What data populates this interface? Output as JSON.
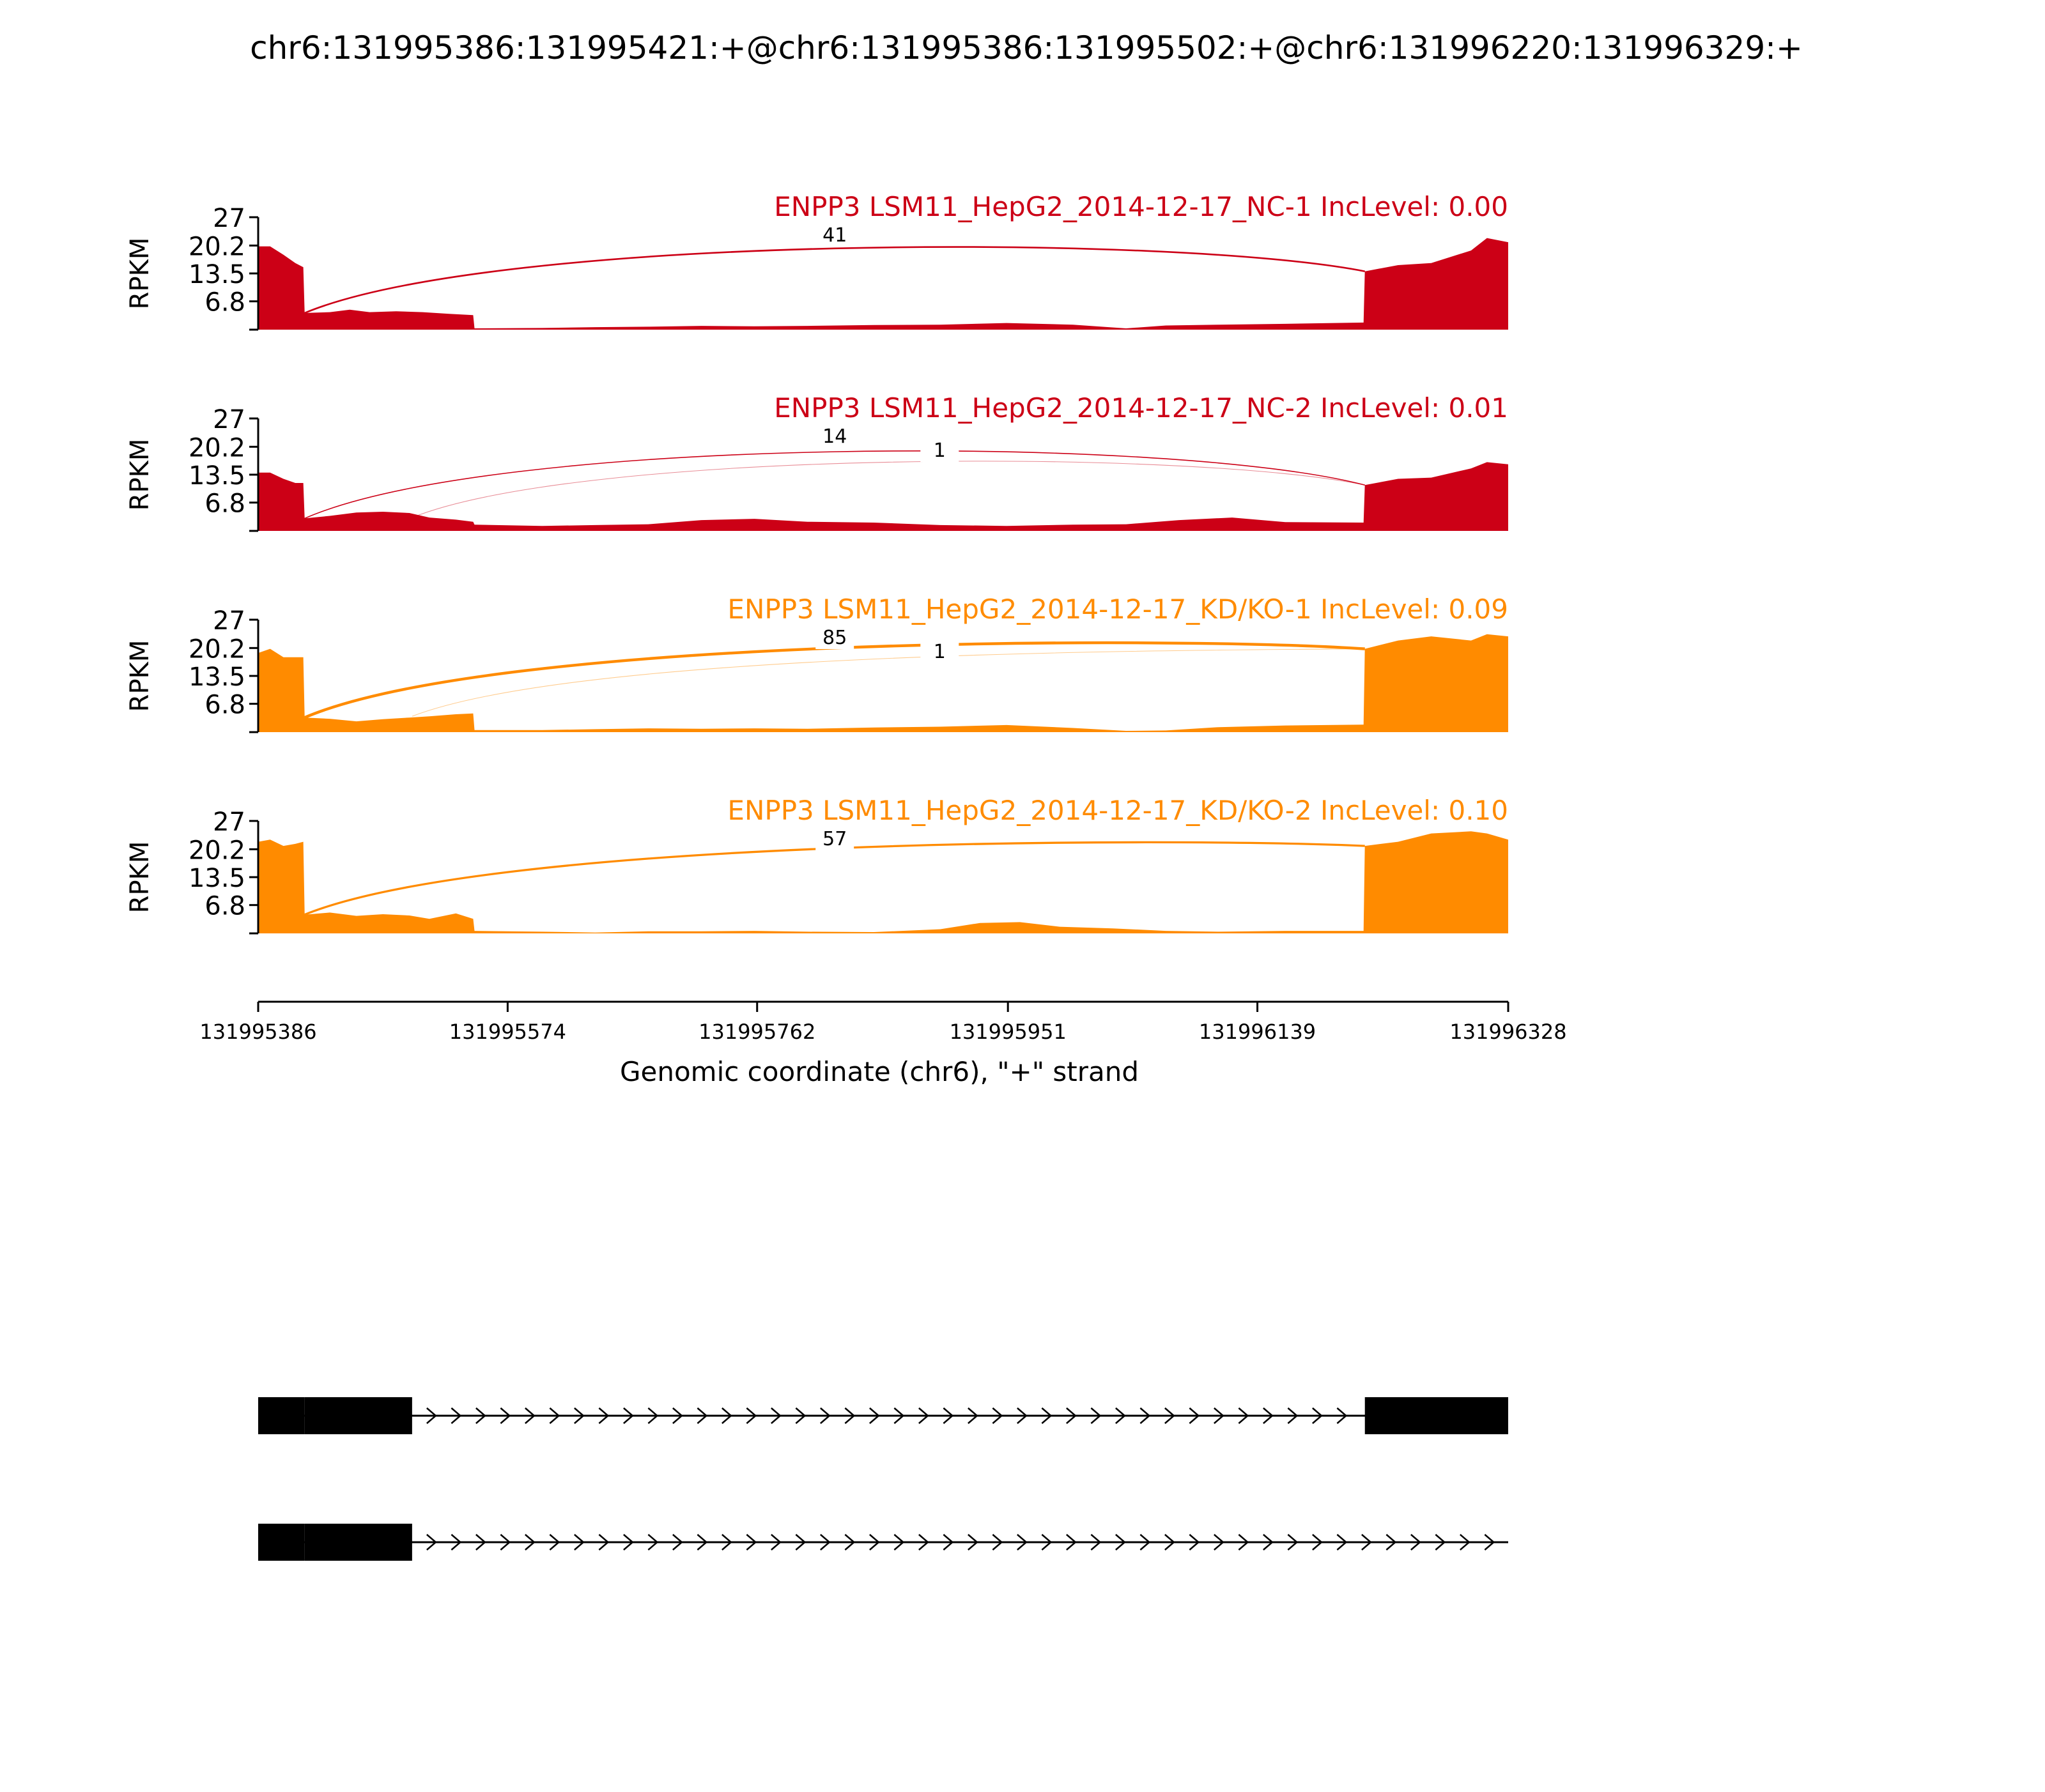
{
  "title": "chr6:131995386:131995421:+@chr6:131995386:131995502:+@chr6:131996220:131996329:+",
  "chart_data": {
    "type": "area",
    "title": "chr6:131995386:131995421:+@chr6:131995386:131995502:+@chr6:131996220:131996329:+",
    "xlabel": "Genomic coordinate (chr6), \"+\" strand",
    "ylabel": "RPKM",
    "xlim": [
      131995386,
      131996328
    ],
    "ylim": [
      0,
      27
    ],
    "x_ticks": [
      "131995386",
      "131995574",
      "131995762",
      "131995951",
      "131996139",
      "131996328"
    ],
    "y_ticks": [
      "27",
      "20.2",
      "13.5",
      "6.8"
    ],
    "grid": false,
    "series": [
      {
        "name": "ENPP3 LSM11_HepG2_2014-12-17_NC-1 IncLevel: 0.00",
        "color": "#cc0016",
        "coverage": [
          [
            131995386,
            20
          ],
          [
            131995395,
            20
          ],
          [
            131995405,
            18
          ],
          [
            131995414,
            16
          ],
          [
            131995420,
            15
          ],
          [
            131995421,
            4
          ],
          [
            131995440,
            4.2
          ],
          [
            131995455,
            4.8
          ],
          [
            131995470,
            4.2
          ],
          [
            131995490,
            4.4
          ],
          [
            131995510,
            4.2
          ],
          [
            131995530,
            3.8
          ],
          [
            131995548,
            3.5
          ],
          [
            131995549,
            0.3
          ],
          [
            131995600,
            0.4
          ],
          [
            131995640,
            0.6
          ],
          [
            131995680,
            0.7
          ],
          [
            131995720,
            0.9
          ],
          [
            131995760,
            0.8
          ],
          [
            131995800,
            0.9
          ],
          [
            131995850,
            1.1
          ],
          [
            131995900,
            1.2
          ],
          [
            131995950,
            1.6
          ],
          [
            131996000,
            1.2
          ],
          [
            131996040,
            0.3
          ],
          [
            131996070,
            1.0
          ],
          [
            131996110,
            1.2
          ],
          [
            131996160,
            1.4
          ],
          [
            131996219,
            1.7
          ],
          [
            131996220,
            14
          ],
          [
            131996245,
            15.5
          ],
          [
            131996270,
            16
          ],
          [
            131996300,
            19
          ],
          [
            131996312,
            22
          ],
          [
            131996328,
            21
          ]
        ],
        "junctions": [
          {
            "start": 131995421,
            "end": 131996220,
            "count": "41"
          }
        ]
      },
      {
        "name": "ENPP3 LSM11_HepG2_2014-12-17_NC-2 IncLevel: 0.01",
        "color": "#cc0016",
        "coverage": [
          [
            131995386,
            14
          ],
          [
            131995395,
            14
          ],
          [
            131995405,
            12.5
          ],
          [
            131995414,
            11.5
          ],
          [
            131995420,
            11.5
          ],
          [
            131995421,
            3
          ],
          [
            131995440,
            3.6
          ],
          [
            131995460,
            4.4
          ],
          [
            131995480,
            4.6
          ],
          [
            131995500,
            4.3
          ],
          [
            131995515,
            3.2
          ],
          [
            131995535,
            2.7
          ],
          [
            131995548,
            2.2
          ],
          [
            131995549,
            1.5
          ],
          [
            131995600,
            1.2
          ],
          [
            131995640,
            1.4
          ],
          [
            131995680,
            1.6
          ],
          [
            131995720,
            2.6
          ],
          [
            131995760,
            2.9
          ],
          [
            131995800,
            2.2
          ],
          [
            131995850,
            2.0
          ],
          [
            131995900,
            1.4
          ],
          [
            131995950,
            1.2
          ],
          [
            131996000,
            1.5
          ],
          [
            131996040,
            1.6
          ],
          [
            131996080,
            2.6
          ],
          [
            131996120,
            3.2
          ],
          [
            131996160,
            2.1
          ],
          [
            131996219,
            2.0
          ],
          [
            131996220,
            11
          ],
          [
            131996245,
            12.5
          ],
          [
            131996270,
            12.8
          ],
          [
            131996300,
            15
          ],
          [
            131996312,
            16.5
          ],
          [
            131996328,
            16
          ]
        ],
        "junctions": [
          {
            "start": 131995421,
            "end": 131996220,
            "count": "14"
          },
          {
            "start": 131995502,
            "end": 131996220,
            "count": "1"
          }
        ]
      },
      {
        "name": "ENPP3 LSM11_HepG2_2014-12-17_KD/KO-1 IncLevel: 0.09",
        "color": "#ff8b00",
        "coverage": [
          [
            131995386,
            19
          ],
          [
            131995395,
            20
          ],
          [
            131995405,
            18
          ],
          [
            131995414,
            18
          ],
          [
            131995420,
            18
          ],
          [
            131995421,
            3.5
          ],
          [
            131995440,
            3.2
          ],
          [
            131995460,
            2.6
          ],
          [
            131995480,
            3.1
          ],
          [
            131995500,
            3.5
          ],
          [
            131995515,
            3.8
          ],
          [
            131995535,
            4.3
          ],
          [
            131995548,
            4.5
          ],
          [
            131995549,
            0.5
          ],
          [
            131995600,
            0.5
          ],
          [
            131995640,
            0.7
          ],
          [
            131995680,
            0.9
          ],
          [
            131995720,
            0.8
          ],
          [
            131995760,
            0.9
          ],
          [
            131995800,
            0.8
          ],
          [
            131995850,
            1.1
          ],
          [
            131995900,
            1.3
          ],
          [
            131995950,
            1.7
          ],
          [
            131996000,
            1.0
          ],
          [
            131996040,
            0.3
          ],
          [
            131996070,
            0.4
          ],
          [
            131996110,
            1.2
          ],
          [
            131996160,
            1.6
          ],
          [
            131996219,
            1.8
          ],
          [
            131996220,
            20
          ],
          [
            131996245,
            22
          ],
          [
            131996270,
            23
          ],
          [
            131996300,
            22
          ],
          [
            131996312,
            23.5
          ],
          [
            131996328,
            23
          ]
        ],
        "junctions": [
          {
            "start": 131995421,
            "end": 131996220,
            "count": "85"
          },
          {
            "start": 131995502,
            "end": 131996220,
            "count": "1"
          }
        ]
      },
      {
        "name": "ENPP3 LSM11_HepG2_2014-12-17_KD/KO-2 IncLevel: 0.10",
        "color": "#ff8b00",
        "coverage": [
          [
            131995386,
            22
          ],
          [
            131995395,
            22.5
          ],
          [
            131995405,
            21
          ],
          [
            131995414,
            21.5
          ],
          [
            131995420,
            22
          ],
          [
            131995421,
            4.5
          ],
          [
            131995440,
            5.0
          ],
          [
            131995460,
            4.2
          ],
          [
            131995480,
            4.6
          ],
          [
            131995500,
            4.3
          ],
          [
            131995515,
            3.5
          ],
          [
            131995535,
            4.8
          ],
          [
            131995548,
            3.5
          ],
          [
            131995549,
            0.6
          ],
          [
            131995600,
            0.4
          ],
          [
            131995640,
            0.2
          ],
          [
            131995680,
            0.5
          ],
          [
            131995720,
            0.5
          ],
          [
            131995760,
            0.6
          ],
          [
            131995800,
            0.4
          ],
          [
            131995850,
            0.3
          ],
          [
            131995900,
            1.0
          ],
          [
            131995930,
            2.5
          ],
          [
            131995960,
            2.7
          ],
          [
            131995990,
            1.6
          ],
          [
            131996030,
            1.2
          ],
          [
            131996070,
            0.6
          ],
          [
            131996110,
            0.4
          ],
          [
            131996160,
            0.6
          ],
          [
            131996219,
            0.6
          ],
          [
            131996220,
            21
          ],
          [
            131996245,
            22
          ],
          [
            131996270,
            24
          ],
          [
            131996300,
            24.5
          ],
          [
            131996312,
            24
          ],
          [
            131996328,
            22.5
          ]
        ],
        "junctions": [
          {
            "start": 131995421,
            "end": 131996220,
            "count": "57"
          }
        ]
      }
    ],
    "transcripts": [
      {
        "exons": [
          [
            131995386,
            131995421
          ],
          [
            131995421,
            131995502
          ],
          [
            131996220,
            131996328
          ]
        ],
        "strand": "+"
      },
      {
        "exons": [
          [
            131995386,
            131995421
          ],
          [
            131995421,
            131995502
          ]
        ],
        "strand": "+"
      }
    ]
  }
}
